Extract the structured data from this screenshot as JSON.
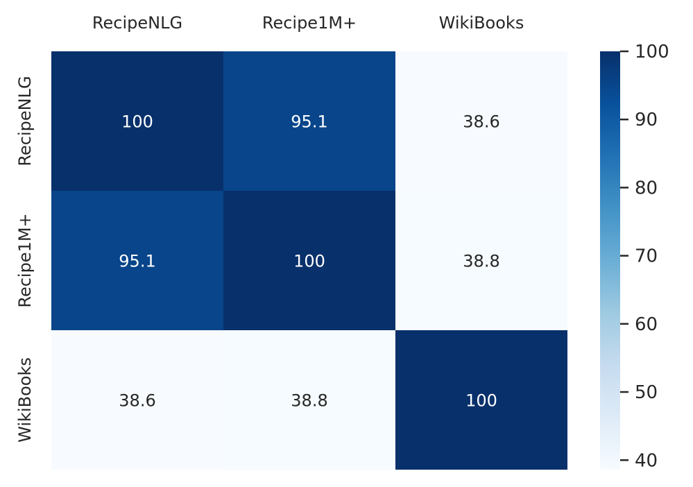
{
  "chart_data": {
    "type": "heatmap",
    "title": "",
    "xlabel": "",
    "ylabel": "",
    "x_categories": [
      "RecipeNLG",
      "Recipe1M+",
      "WikiBooks"
    ],
    "y_categories": [
      "RecipeNLG",
      "Recipe1M+",
      "WikiBooks"
    ],
    "values": [
      [
        100,
        95.1,
        38.6
      ],
      [
        95.1,
        100,
        38.8
      ],
      [
        38.6,
        38.8,
        100
      ]
    ],
    "cell_labels": [
      [
        "100",
        "95.1",
        "38.6"
      ],
      [
        "95.1",
        "100",
        "38.8"
      ],
      [
        "38.6",
        "38.8",
        "100"
      ]
    ],
    "x_axis_position": "top",
    "colormap": "Blues",
    "colors": {
      "low": "#f7fbff",
      "high": "#08306b",
      "text_dark": "#262626",
      "text_light": "#ffffff"
    },
    "colorbar": {
      "position": "right",
      "vmin": 38.6,
      "vmax": 100,
      "ticks": [
        40,
        50,
        60,
        70,
        80,
        90,
        100
      ],
      "tick_labels": [
        "40",
        "50",
        "60",
        "70",
        "80",
        "90",
        "100"
      ]
    },
    "grid": false
  }
}
